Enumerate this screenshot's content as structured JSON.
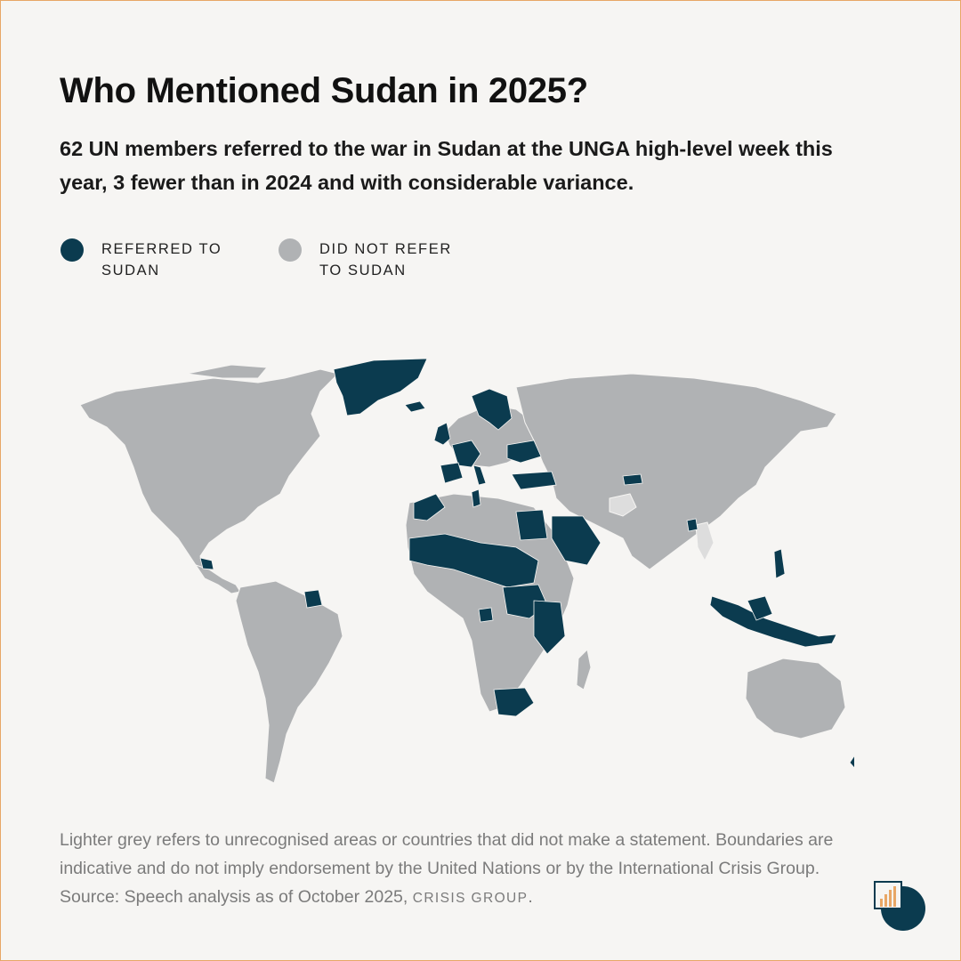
{
  "title": "Who Mentioned Sudan in 2025?",
  "subtitle": "62 UN members referred to the war in Sudan at the UNGA high-level week this year, 3 fewer than in 2024 and with considerable variance.",
  "legend": {
    "referred_label": "REFERRED TO SUDAN",
    "not_referred_label": "DID NOT REFER TO SUDAN"
  },
  "colors": {
    "referred": "#0b3b4f",
    "not_referred": "#b0b2b4",
    "unrecognised_or_no_statement": "#dddddd",
    "background": "#f6f5f3",
    "border": "#e8a766"
  },
  "map": {
    "referred_countries": [
      "Greenland (Denmark)",
      "Iceland",
      "United Kingdom",
      "Ireland",
      "Norway",
      "Sweden",
      "Finland",
      "Denmark",
      "Germany",
      "France",
      "Spain",
      "Italy",
      "Slovenia",
      "Croatia",
      "Romania",
      "Ukraine",
      "Greece",
      "Turkey",
      "Morocco",
      "Tunisia",
      "Egypt",
      "Saudi Arabia",
      "Yemen",
      "Mauritania",
      "Mali",
      "Niger",
      "Chad",
      "Sudan",
      "South Sudan",
      "Central African Republic",
      "Cameroon",
      "Congo",
      "Uganda",
      "Kenya",
      "Tanzania",
      "Burundi",
      "Gabon",
      "Ghana",
      "Sierra Leone",
      "Liberia",
      "Eritrea",
      "Kyrgyzstan",
      "Bangladesh",
      "Philippines",
      "Malaysia",
      "Indonesia",
      "Papua New Guinea",
      "New Zealand",
      "South Africa",
      "Guatemala",
      "El Salvador",
      "Guyana",
      "Suriname",
      "Vanuatu"
    ],
    "lighter_grey_areas": [
      "Afghanistan",
      "Myanmar"
    ]
  },
  "footnote": {
    "text": "Lighter grey refers to unrecognised areas or countries that did not make a statement. Boundaries are indicative and do not imply endorsement by the United Nations or by the International Crisis Group. Source: Speech analysis as of October 2025,",
    "brand": "CRISIS GROUP",
    "end": "."
  }
}
